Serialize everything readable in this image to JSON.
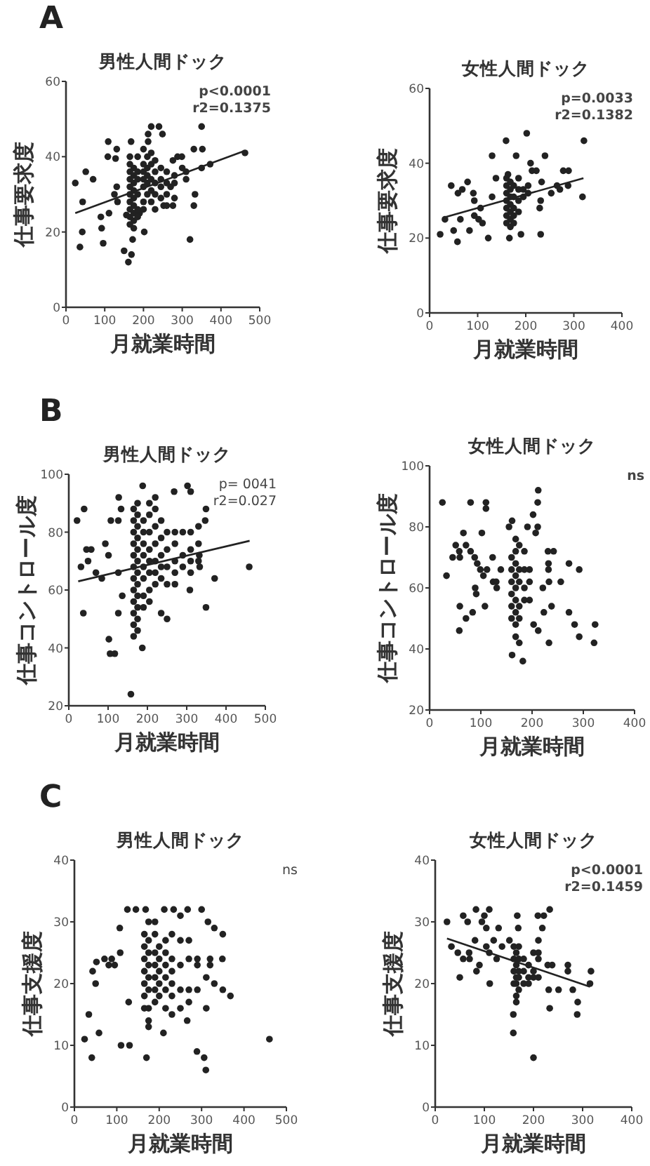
{
  "chart_data": [
    {
      "type": "scatter",
      "title": "男性人間ドック",
      "xlabel": "月就業時間",
      "ylabel": "仕事要求度",
      "xlim": [
        0,
        500
      ],
      "ylim": [
        0,
        60
      ],
      "xticks": [
        0,
        100,
        200,
        300,
        400,
        500
      ],
      "yticks": [
        0,
        20,
        40,
        60
      ],
      "marker": "circle",
      "annotations": [
        "A",
        "**p<0.0001**",
        "**r2=0.1375**"
      ],
      "series": [
        {
          "color": "#222222",
          "x": [
            24,
            43,
            51,
            70,
            36,
            42,
            92,
            96,
            90,
            109,
            108,
            111,
            128,
            131,
            131,
            125,
            133,
            150,
            156,
            168,
            169,
            161,
            172,
            212,
            212,
            220,
            240,
            249,
            202,
            320,
            330,
            350,
            352,
            330,
            333,
            350,
            372,
            462,
            300,
            276,
            288,
            299,
            270,
            276,
            252,
            190,
            165,
            165,
            165,
            165,
            165,
            165,
            165,
            165,
            165,
            165,
            175,
            175,
            175,
            175,
            175,
            175,
            175,
            175,
            175,
            185,
            185,
            185,
            185,
            185,
            185,
            200,
            200,
            200,
            200,
            200,
            200,
            200,
            210,
            210,
            210,
            210,
            210,
            220,
            220,
            220,
            220,
            220,
            230,
            230,
            230,
            230,
            230,
            245,
            245,
            245,
            245,
            260,
            260,
            260,
            260,
            280,
            280,
            280,
            310,
            310
          ],
          "values": [
            33,
            28,
            36,
            34,
            16,
            20,
            21,
            17,
            24,
            44,
            40,
            25,
            39.5,
            42,
            32,
            30,
            28,
            15,
            24.5,
            44,
            14,
            12,
            18,
            44,
            46,
            48,
            48,
            46,
            20,
            18,
            42,
            48,
            42,
            27,
            30,
            37,
            38,
            41,
            37,
            39,
            40,
            40,
            32,
            27,
            27,
            25,
            22,
            24,
            26,
            28,
            30,
            32,
            34,
            36,
            38,
            40,
            21,
            23,
            25,
            27,
            29,
            31,
            33,
            35,
            37,
            24,
            26,
            30,
            34,
            36,
            40,
            26,
            28,
            32,
            34,
            36,
            38,
            42,
            30,
            33,
            35,
            37,
            40,
            28,
            31,
            34,
            38,
            41,
            26,
            30,
            33,
            36,
            39,
            29,
            32,
            34,
            37,
            27,
            30,
            33,
            36,
            29,
            33,
            35,
            34,
            36
          ]
        },
        {
          "type": "line",
          "color": "#222222",
          "marker": "none",
          "x": [
            24,
            460
          ],
          "values": [
            25,
            41.5
          ]
        }
      ]
    },
    {
      "type": "scatter",
      "title": "女性人間ドック",
      "xlabel": "月就業時間",
      "ylabel": "仕事要求度",
      "xlim": [
        0,
        400
      ],
      "ylim": [
        0,
        60
      ],
      "xticks": [
        0,
        100,
        200,
        300,
        400
      ],
      "yticks": [
        0,
        20,
        40,
        60
      ],
      "marker": "circle",
      "annotations": [
        "**p=0.0033**",
        "**r2=0.1382**"
      ],
      "series": [
        {
          "color": "#222222",
          "x": [
            22,
            32,
            45,
            50,
            58,
            59,
            68,
            64,
            79,
            83,
            91,
            93,
            93,
            102,
            106,
            110,
            122,
            130,
            130,
            138,
            159,
            163,
            166,
            180,
            190,
            202,
            210,
            213,
            222,
            231,
            229,
            231,
            240,
            233,
            253,
            265,
            271,
            278,
            289,
            288,
            318,
            321,
            160,
            160,
            160,
            160,
            160,
            160,
            160,
            168,
            168,
            168,
            168,
            168,
            168,
            168,
            175,
            175,
            175,
            175,
            175,
            185,
            185,
            185,
            185,
            195,
            195,
            205,
            205
          ],
          "values": [
            21,
            25,
            34,
            22,
            19,
            32,
            33,
            25,
            35,
            22,
            32,
            30,
            26,
            25,
            28,
            24,
            20,
            42,
            31,
            36,
            46,
            37,
            20,
            42,
            21,
            48,
            40,
            38,
            38,
            21,
            28,
            30,
            42,
            35,
            32,
            34,
            33,
            38,
            38,
            34,
            31,
            46,
            24,
            26,
            28,
            30,
            32,
            34,
            36,
            23,
            25,
            27,
            29,
            31,
            33,
            35,
            24,
            26,
            28,
            31,
            34,
            27,
            30,
            33,
            36,
            31,
            33,
            32,
            34
          ]
        },
        {
          "type": "line",
          "color": "#222222",
          "marker": "none",
          "x": [
            30,
            320
          ],
          "values": [
            25.5,
            36
          ]
        }
      ]
    },
    {
      "type": "scatter",
      "title": "男性人間ドック",
      "xlabel": "月就業時間",
      "ylabel": "仕事コントロール度",
      "xlim": [
        0,
        500
      ],
      "ylim": [
        20,
        100
      ],
      "xticks": [
        0,
        100,
        200,
        300,
        400,
        500
      ],
      "yticks": [
        20,
        40,
        60,
        80,
        100
      ],
      "marker": "circle",
      "annotations": [
        "B",
        "p= 0041",
        "r2=0.027"
      ],
      "series": [
        {
          "color": "#222222",
          "x": [
            21,
            39,
            31,
            37,
            45,
            57,
            49,
            69,
            84,
            93,
            101,
            102,
            105,
            117,
            107,
            126,
            126,
            126,
            127,
            136,
            133,
            158,
            187,
            188,
            302,
            310,
            268,
            349,
            347,
            349,
            371,
            459,
            308,
            332,
            333,
            165,
            165,
            165,
            165,
            165,
            165,
            165,
            165,
            165,
            165,
            165,
            165,
            175,
            175,
            175,
            175,
            175,
            175,
            175,
            175,
            175,
            175,
            175,
            175,
            190,
            190,
            190,
            190,
            190,
            190,
            190,
            190,
            205,
            205,
            205,
            205,
            205,
            205,
            205,
            205,
            220,
            220,
            220,
            220,
            220,
            220,
            220,
            235,
            235,
            235,
            235,
            235,
            235,
            250,
            250,
            250,
            250,
            250,
            270,
            270,
            270,
            270,
            270,
            290,
            290,
            290,
            310,
            310,
            310,
            310,
            330,
            330,
            330
          ],
          "values": [
            84,
            88,
            68,
            52,
            74,
            74,
            70,
            66,
            64,
            76,
            72,
            43,
            38,
            38,
            84,
            66,
            52,
            84,
            92,
            58,
            88,
            24,
            40,
            96,
            96,
            94,
            94,
            88,
            84,
            54,
            64,
            68,
            60,
            72,
            68,
            44,
            48,
            52,
            56,
            60,
            64,
            68,
            72,
            76,
            80,
            84,
            88,
            46,
            50,
            54,
            58,
            62,
            66,
            70,
            74,
            78,
            82,
            86,
            90,
            54,
            58,
            64,
            68,
            72,
            76,
            80,
            84,
            56,
            60,
            66,
            70,
            74,
            80,
            86,
            90,
            62,
            66,
            70,
            76,
            82,
            88,
            92,
            52,
            64,
            68,
            72,
            78,
            84,
            50,
            62,
            68,
            74,
            80,
            62,
            66,
            70,
            76,
            80,
            68,
            72,
            80,
            66,
            70,
            74,
            80,
            70,
            76,
            82
          ]
        },
        {
          "type": "line",
          "color": "#222222",
          "marker": "none",
          "x": [
            24,
            460
          ],
          "values": [
            63,
            77
          ]
        }
      ]
    },
    {
      "type": "scatter",
      "title": "女性人間ドック",
      "xlabel": "月就業時間",
      "ylabel": "仕事コントロール度",
      "xlim": [
        0,
        400
      ],
      "ylim": [
        20,
        100
      ],
      "xticks": [
        0,
        100,
        200,
        300,
        400
      ],
      "yticks": [
        20,
        40,
        60,
        80,
        100
      ],
      "marker": "circle",
      "annotations": [
        "**ns**"
      ],
      "series": [
        {
          "color": "#222222",
          "x": [
            25,
            33,
            45,
            51,
            59,
            58,
            66,
            71,
            80,
            80,
            110,
            110,
            102,
            59,
            58,
            71,
            84,
            89,
            91,
            88,
            93,
            99,
            105,
            112,
            108,
            123,
            124,
            130,
            131,
            139,
            155,
            161,
            161,
            182,
            191,
            202,
            212,
            211,
            211,
            207,
            203,
            212,
            221,
            223,
            231,
            232,
            232,
            233,
            238,
            233,
            242,
            256,
            272,
            272,
            283,
            292,
            292,
            321,
            323,
            160,
            160,
            160,
            160,
            160,
            160,
            168,
            168,
            168,
            168,
            168,
            168,
            168,
            168,
            168,
            175,
            175,
            175,
            175,
            175,
            175,
            185,
            185,
            185,
            185,
            195,
            195,
            195
          ],
          "values": [
            88,
            64,
            70,
            74,
            70,
            72,
            78,
            74,
            72,
            88,
            88,
            86,
            78,
            54,
            46,
            50,
            52,
            60,
            58,
            70,
            68,
            66,
            64,
            66,
            54,
            70,
            62,
            62,
            60,
            66,
            80,
            82,
            38,
            36,
            80,
            84,
            92,
            88,
            80,
            78,
            48,
            46,
            60,
            52,
            72,
            68,
            66,
            62,
            54,
            42,
            72,
            62,
            68,
            52,
            48,
            66,
            44,
            42,
            48,
            50,
            54,
            58,
            62,
            66,
            70,
            44,
            48,
            52,
            56,
            60,
            64,
            68,
            72,
            76,
            42,
            50,
            54,
            62,
            66,
            74,
            56,
            60,
            66,
            72,
            56,
            62,
            66
          ]
        }
      ]
    },
    {
      "type": "scatter",
      "title": "男性人間ドック",
      "xlabel": "月就業時間",
      "ylabel": "仕事支援度",
      "xlim": [
        0,
        500
      ],
      "ylim": [
        0,
        40
      ],
      "xticks": [
        0,
        100,
        200,
        300,
        400,
        500
      ],
      "yticks": [
        0,
        10,
        20,
        30,
        40
      ],
      "marker": "circle",
      "annotations": [
        "C",
        "ns"
      ],
      "series": [
        {
          "color": "#222222",
          "x": [
            24,
            34,
            41,
            43,
            50,
            52,
            58,
            71,
            81,
            88,
            95,
            107,
            108,
            110,
            130,
            128,
            125,
            170,
            210,
            266,
            289,
            306,
            310,
            311,
            368,
            460,
            300,
            315,
            330,
            350,
            349,
            330,
            350,
            311,
            267,
            250,
            234,
            212,
            168,
            145,
            165,
            165,
            165,
            165,
            165,
            165,
            165,
            175,
            175,
            175,
            175,
            175,
            175,
            175,
            175,
            175,
            190,
            190,
            190,
            190,
            190,
            190,
            190,
            200,
            200,
            200,
            200,
            200,
            215,
            215,
            215,
            215,
            215,
            215,
            230,
            230,
            230,
            230,
            230,
            230,
            250,
            250,
            250,
            250,
            270,
            270,
            270,
            270,
            290,
            290,
            290,
            320,
            320
          ],
          "values": [
            11,
            15,
            8,
            22,
            20,
            23.5,
            12,
            24,
            23,
            24,
            23,
            29,
            25,
            10,
            10,
            17,
            32,
            8,
            12,
            14,
            9,
            8,
            6,
            16,
            18,
            11,
            32,
            30,
            29,
            28,
            24,
            20,
            19,
            21,
            32,
            31,
            32,
            32,
            32,
            32,
            16,
            18,
            20,
            22,
            24,
            26,
            28,
            13,
            14,
            16,
            19,
            21,
            23,
            25,
            27,
            30,
            17,
            19,
            21,
            23,
            25,
            28,
            30,
            18,
            20,
            22,
            24,
            26,
            16,
            19,
            21,
            23,
            25,
            27,
            15,
            18,
            20,
            22,
            24,
            28,
            16,
            19,
            23,
            27,
            17,
            19,
            24,
            27,
            19,
            23,
            24,
            23,
            24
          ]
        }
      ]
    },
    {
      "type": "scatter",
      "title": "女性人間ドック",
      "xlabel": "月就業時間",
      "ylabel": "仕事支援度",
      "xlim": [
        0,
        400
      ],
      "ylim": [
        0,
        40
      ],
      "xticks": [
        0,
        100,
        200,
        300,
        400
      ],
      "yticks": [
        0,
        10,
        20,
        30,
        40
      ],
      "marker": "circle",
      "annotations": [
        "**p<0.0001**",
        "**r2=0.1459**"
      ],
      "series": [
        {
          "color": "#222222",
          "x": [
            24,
            33,
            46,
            50,
            57,
            66,
            57,
            70,
            69,
            81,
            83,
            84,
            90,
            95,
            100,
            104,
            104,
            110,
            111,
            110,
            119,
            129,
            125,
            136,
            151,
            159,
            159,
            165,
            167,
            169,
            200,
            209,
            221,
            233,
            218,
            229,
            231,
            233,
            238,
            251,
            270,
            270,
            280,
            290,
            289,
            317,
            315,
            160,
            160,
            160,
            160,
            165,
            165,
            165,
            165,
            165,
            170,
            170,
            170,
            170,
            170,
            180,
            180,
            180,
            190,
            190,
            190,
            200,
            200,
            200,
            210,
            210,
            210,
            210
          ],
          "values": [
            30,
            26,
            25,
            21,
            31,
            30,
            24,
            24,
            25,
            27,
            32,
            22,
            23,
            30,
            31,
            29,
            26,
            32,
            20,
            25,
            27,
            29,
            24,
            26,
            27,
            15,
            12,
            17,
            31,
            29,
            8,
            31,
            31,
            32,
            29,
            23,
            19,
            16,
            23,
            19,
            23,
            22,
            19,
            17,
            15,
            22,
            20,
            20,
            22,
            24,
            26,
            18,
            20,
            21,
            23,
            25,
            19,
            21,
            22,
            24,
            26,
            20,
            22,
            24,
            20,
            21,
            23,
            21,
            22,
            25,
            21,
            24,
            25,
            27
          ]
        },
        {
          "type": "line",
          "color": "#222222",
          "marker": "none",
          "x": [
            24,
            315
          ],
          "values": [
            27.3,
            19.5
          ]
        }
      ]
    }
  ]
}
